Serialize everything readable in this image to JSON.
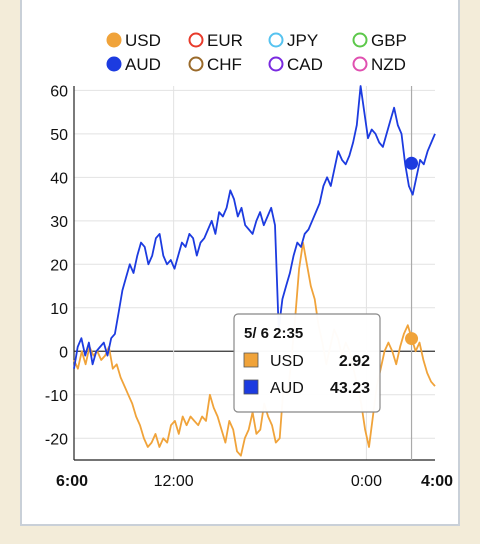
{
  "legend": [
    {
      "label": "USD",
      "color": "#f0a33a",
      "filled": true
    },
    {
      "label": "EUR",
      "color": "#e83a2a",
      "filled": false
    },
    {
      "label": "JPY",
      "color": "#56c3f0",
      "filled": false
    },
    {
      "label": "GBP",
      "color": "#5cc84a",
      "filled": false
    },
    {
      "label": "AUD",
      "color": "#1c3be0",
      "filled": true
    },
    {
      "label": "CHF",
      "color": "#9a6a2a",
      "filled": false
    },
    {
      "label": "CAD",
      "color": "#7a2ae0",
      "filled": false
    },
    {
      "label": "NZD",
      "color": "#e050b0",
      "filled": false
    }
  ],
  "tooltip": {
    "time": "5/ 6 2:35",
    "rows": [
      {
        "label": "USD",
        "value": "2.92",
        "color": "#f0a33a"
      },
      {
        "label": "AUD",
        "value": "43.23",
        "color": "#1c3be0"
      }
    ]
  },
  "chart_data": {
    "type": "line",
    "x_ticks": [
      {
        "label": "6:00",
        "bold": true,
        "pos": 0
      },
      {
        "label": "12:00",
        "bold": false,
        "pos": 0.276
      },
      {
        "label": "0:00",
        "bold": false,
        "pos": 0.81
      },
      {
        "label": "4:00",
        "bold": true,
        "pos": 1
      }
    ],
    "yticks": [
      60,
      50,
      40,
      30,
      20,
      10,
      0,
      -10,
      -20
    ],
    "ylim": [
      -25,
      61
    ],
    "grid": true,
    "cursor_pos": 0.935,
    "series": [
      {
        "name": "USD",
        "color": "#f0a33a",
        "values": [
          -2,
          -4,
          0,
          -3,
          1,
          -1,
          0,
          -2,
          -1,
          1,
          -4,
          -3,
          -6,
          -8,
          -10,
          -12,
          -15,
          -17,
          -20,
          -22,
          -21,
          -19,
          -22,
          -20,
          -21,
          -17,
          -16,
          -19,
          -15,
          -17,
          -15,
          -16,
          -17,
          -15,
          -16,
          -10,
          -13,
          -15,
          -18,
          -21,
          -16,
          -18,
          -23,
          -24,
          -20,
          -18,
          -14,
          -19,
          -18,
          -12,
          -15,
          -17,
          -21,
          -20,
          -8,
          -10,
          -2,
          8,
          19,
          25,
          20,
          15,
          12,
          6,
          2,
          -3,
          1,
          5,
          3,
          -1,
          2,
          0,
          -4,
          -8,
          -12,
          -18,
          -22,
          -15,
          -8,
          -4,
          0,
          2,
          0,
          -3,
          1,
          4,
          6,
          3,
          0,
          2,
          -2,
          -5,
          -7,
          -8
        ]
      },
      {
        "name": "AUD",
        "color": "#1c3be0",
        "values": [
          -4,
          1,
          3,
          -1,
          2,
          -3,
          0,
          1,
          2,
          -1,
          3,
          4,
          9,
          14,
          17,
          20,
          18,
          22,
          25,
          24,
          20,
          22,
          26,
          27,
          22,
          20,
          21,
          19,
          22,
          25,
          24,
          27,
          26,
          22,
          25,
          26,
          28,
          30,
          27,
          32,
          31,
          33,
          37,
          35,
          31,
          33,
          29,
          28,
          27,
          30,
          32,
          29,
          31,
          33,
          29,
          5,
          12,
          15,
          18,
          22,
          25,
          24,
          27,
          28,
          30,
          32,
          34,
          38,
          40,
          38,
          42,
          46,
          44,
          43,
          45,
          48,
          52,
          61,
          55,
          49,
          51,
          50,
          48,
          47,
          50,
          53,
          56,
          52,
          50,
          43,
          38,
          36,
          40,
          44,
          43,
          46,
          48,
          50
        ]
      }
    ],
    "markers": [
      {
        "series": "USD",
        "value": 2.92
      },
      {
        "series": "AUD",
        "value": 43.23
      }
    ]
  }
}
